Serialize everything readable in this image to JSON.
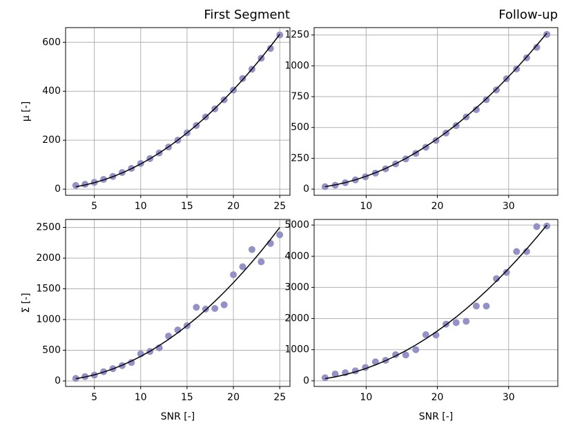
{
  "chart_data": [
    {
      "type": "scatter",
      "title": "First Segment",
      "ylabel": "μ [-]",
      "x": [
        3,
        4,
        5,
        6,
        7,
        8,
        9,
        10,
        11,
        12,
        13,
        14,
        15,
        16,
        17,
        18,
        19,
        20,
        21,
        22,
        23,
        24,
        25
      ],
      "series": [
        {
          "type": "scatter",
          "color": "#9491c6",
          "values": [
            15,
            20,
            28,
            40,
            52,
            68,
            85,
            105,
            125,
            148,
            172,
            200,
            230,
            260,
            295,
            328,
            365,
            405,
            452,
            490,
            535,
            575,
            630
          ]
        },
        {
          "type": "line",
          "color": "#000000",
          "values": [
            9.9,
            17.2,
            26.5,
            37.8,
            51.1,
            66.4,
            83.7,
            103,
            124.3,
            147.6,
            172.9,
            200.2,
            229.5,
            260.8,
            294.1,
            329.4,
            366.7,
            406,
            447.3,
            490.6,
            535.9,
            583.2,
            632.5
          ]
        }
      ],
      "xlim": [
        1.9,
        26.1
      ],
      "ylim": [
        -25,
        660
      ],
      "xticks": [
        5,
        10,
        15,
        20,
        25
      ],
      "yticks": [
        0,
        200,
        400,
        600
      ],
      "grid": true
    },
    {
      "type": "scatter",
      "title": "Follow-up",
      "x": [
        4.24,
        5.66,
        7.07,
        8.49,
        9.9,
        11.31,
        12.73,
        14.14,
        15.56,
        16.97,
        18.38,
        19.8,
        21.21,
        22.63,
        24.04,
        25.46,
        26.87,
        28.28,
        29.7,
        31.11,
        32.53,
        33.94,
        35.36
      ],
      "series": [
        {
          "type": "scatter",
          "color": "#9491c6",
          "values": [
            20,
            32,
            52,
            75,
            100,
            130,
            165,
            205,
            245,
            290,
            340,
            395,
            455,
            515,
            585,
            645,
            725,
            805,
            895,
            975,
            1065,
            1150,
            1255
          ]
        },
        {
          "type": "line",
          "color": "#000000",
          "values": [
            19.8,
            34.4,
            53,
            75.6,
            102.2,
            132.8,
            167.4,
            206,
            248.6,
            295.2,
            345.8,
            400.4,
            459,
            521.6,
            588.2,
            658.8,
            733.4,
            812,
            894.6,
            981.2,
            1071.8,
            1166.4,
            1265
          ]
        }
      ],
      "xlim": [
        2.7,
        36.9
      ],
      "ylim": [
        -50,
        1310
      ],
      "xticks": [
        10,
        20,
        30
      ],
      "yticks": [
        0,
        250,
        500,
        750,
        1000,
        1250
      ],
      "grid": true
    },
    {
      "type": "scatter",
      "xlabel": "SNR [-]",
      "ylabel": "Σ [-]",
      "x": [
        3,
        4,
        5,
        6,
        7,
        8,
        9,
        10,
        11,
        12,
        13,
        14,
        15,
        16,
        17,
        18,
        19,
        20,
        21,
        22,
        23,
        24,
        25
      ],
      "series": [
        {
          "type": "scatter",
          "color": "#9491c6",
          "values": [
            40,
            70,
            95,
            150,
            200,
            250,
            300,
            440,
            480,
            540,
            730,
            830,
            900,
            1200,
            1170,
            1180,
            1240,
            1730,
            1860,
            2140,
            1940,
            2240,
            2380
          ]
        },
        {
          "type": "line",
          "color": "#000000",
          "values": [
            36,
            64,
            100,
            144,
            196,
            256,
            324,
            400,
            484,
            576,
            676,
            784,
            900,
            1024,
            1156,
            1296,
            1444,
            1600,
            1764,
            1936,
            2116,
            2304,
            2500
          ]
        }
      ],
      "xlim": [
        1.9,
        26.1
      ],
      "ylim": [
        -90,
        2630
      ],
      "xticks": [
        5,
        10,
        15,
        20,
        25
      ],
      "yticks": [
        0,
        500,
        1000,
        1500,
        2000,
        2500
      ],
      "grid": true
    },
    {
      "type": "scatter",
      "xlabel": "SNR [-]",
      "x": [
        4.24,
        5.66,
        7.07,
        8.49,
        9.9,
        11.31,
        12.73,
        14.14,
        15.56,
        16.97,
        18.38,
        19.8,
        21.21,
        22.63,
        24.04,
        25.46,
        26.87,
        28.28,
        29.7,
        31.11,
        32.53,
        33.94,
        35.36
      ],
      "series": [
        {
          "type": "scatter",
          "color": "#9491c6",
          "values": [
            100,
            220,
            260,
            320,
            430,
            610,
            660,
            840,
            830,
            1000,
            1480,
            1470,
            1820,
            1870,
            1910,
            2400,
            2400,
            3280,
            3480,
            4150,
            4150,
            4950,
            4970
          ]
        },
        {
          "type": "line",
          "color": "#000000",
          "values": [
            72,
            128,
            200,
            288,
            392,
            512,
            648,
            800,
            968,
            1152,
            1352,
            1568,
            1800,
            2048,
            2312,
            2592,
            2888,
            3200,
            3528,
            3872,
            4232,
            4608,
            5000
          ]
        }
      ],
      "xlim": [
        2.7,
        36.9
      ],
      "ylim": [
        -180,
        5180
      ],
      "xticks": [
        10,
        20,
        30
      ],
      "yticks": [
        0,
        1000,
        2000,
        3000,
        4000,
        5000
      ],
      "grid": true
    }
  ]
}
